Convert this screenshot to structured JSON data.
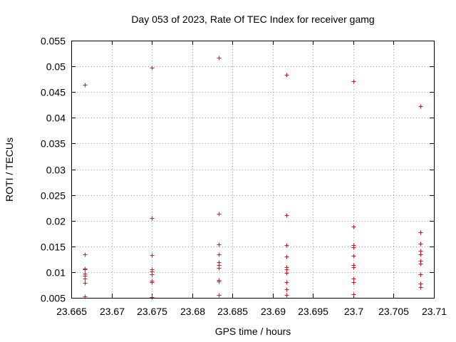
{
  "chart_data": {
    "type": "scatter",
    "title": "Day 053 of 2023, Rate Of TEC Index for receiver gamg",
    "xlabel": "GPS time / hours",
    "ylabel": "ROTI / TECUs",
    "xlim": [
      23.665,
      23.71
    ],
    "ylim": [
      0.005,
      0.055
    ],
    "xticks": [
      23.665,
      23.67,
      23.675,
      23.68,
      23.685,
      23.69,
      23.695,
      23.7,
      23.705,
      23.71
    ],
    "xtick_labels": [
      "23.665",
      "23.67",
      "23.675",
      "23.68",
      "23.685",
      "23.69",
      "23.695",
      "23.7",
      "23.705",
      "23.71"
    ],
    "yticks": [
      0.005,
      0.01,
      0.015,
      0.02,
      0.025,
      0.03,
      0.035,
      0.04,
      0.045,
      0.05,
      0.055
    ],
    "ytick_labels": [
      "0.005",
      "0.01",
      "0.015",
      "0.02",
      "0.025",
      "0.03",
      "0.035",
      "0.04",
      "0.045",
      "0.05",
      "0.055"
    ],
    "grid": true,
    "marker": "+",
    "color": "#e0141c",
    "series": [
      {
        "name": "ROTI",
        "points": [
          [
            23.6667,
            0.0464
          ],
          [
            23.6667,
            0.0135
          ],
          [
            23.6667,
            0.0107
          ],
          [
            23.6667,
            0.0105
          ],
          [
            23.6667,
            0.0097
          ],
          [
            23.6667,
            0.0093
          ],
          [
            23.6667,
            0.0087
          ],
          [
            23.6667,
            0.0079
          ],
          [
            23.6667,
            0.0053
          ],
          [
            23.675,
            0.0498
          ],
          [
            23.675,
            0.0205
          ],
          [
            23.675,
            0.0133
          ],
          [
            23.675,
            0.0105
          ],
          [
            23.675,
            0.0101
          ],
          [
            23.675,
            0.0096
          ],
          [
            23.675,
            0.0083
          ],
          [
            23.675,
            0.0081
          ],
          [
            23.675,
            0.0051
          ],
          [
            23.6833,
            0.0517
          ],
          [
            23.6833,
            0.0214
          ],
          [
            23.6833,
            0.0154
          ],
          [
            23.6833,
            0.0135
          ],
          [
            23.6833,
            0.0119
          ],
          [
            23.6833,
            0.0114
          ],
          [
            23.6833,
            0.0108
          ],
          [
            23.6833,
            0.0085
          ],
          [
            23.6833,
            0.0082
          ],
          [
            23.6833,
            0.0056
          ],
          [
            23.6917,
            0.0483
          ],
          [
            23.6917,
            0.0211
          ],
          [
            23.6917,
            0.0152
          ],
          [
            23.6917,
            0.013
          ],
          [
            23.6917,
            0.011
          ],
          [
            23.6917,
            0.0106
          ],
          [
            23.6917,
            0.0098
          ],
          [
            23.6917,
            0.0081
          ],
          [
            23.6917,
            0.0066
          ],
          [
            23.6917,
            0.0056
          ],
          [
            23.7,
            0.0471
          ],
          [
            23.7,
            0.0189
          ],
          [
            23.7,
            0.0152
          ],
          [
            23.7,
            0.0148
          ],
          [
            23.7,
            0.0132
          ],
          [
            23.7,
            0.0114
          ],
          [
            23.7,
            0.011
          ],
          [
            23.7,
            0.0087
          ],
          [
            23.7,
            0.008
          ],
          [
            23.7,
            0.0057
          ],
          [
            23.7083,
            0.0422
          ],
          [
            23.7083,
            0.0177
          ],
          [
            23.7083,
            0.0155
          ],
          [
            23.7083,
            0.0142
          ],
          [
            23.7083,
            0.0135
          ],
          [
            23.7083,
            0.0122
          ],
          [
            23.7083,
            0.0116
          ],
          [
            23.7083,
            0.0096
          ],
          [
            23.7083,
            0.0078
          ],
          [
            23.7083,
            0.0071
          ]
        ]
      }
    ]
  }
}
